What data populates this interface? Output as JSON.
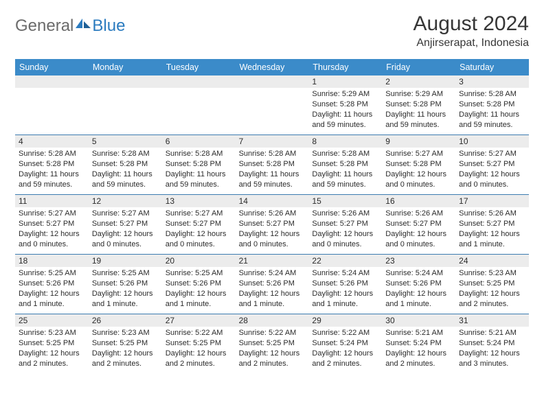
{
  "colors": {
    "header_bg": "#3b8bc9",
    "header_text": "#ffffff",
    "daynum_bg": "#ececec",
    "week_border": "#3b7bb0",
    "body_text": "#2b2b2b",
    "logo_gray": "#6b6b6b",
    "logo_blue": "#2b7bbf"
  },
  "logo": {
    "text1": "General",
    "text2": "Blue"
  },
  "title": "August 2024",
  "location": "Anjirserapat, Indonesia",
  "day_names": [
    "Sunday",
    "Monday",
    "Tuesday",
    "Wednesday",
    "Thursday",
    "Friday",
    "Saturday"
  ],
  "weeks": [
    [
      {
        "n": "",
        "sr": "",
        "ss": "",
        "dl": ""
      },
      {
        "n": "",
        "sr": "",
        "ss": "",
        "dl": ""
      },
      {
        "n": "",
        "sr": "",
        "ss": "",
        "dl": ""
      },
      {
        "n": "",
        "sr": "",
        "ss": "",
        "dl": ""
      },
      {
        "n": "1",
        "sr": "Sunrise: 5:29 AM",
        "ss": "Sunset: 5:28 PM",
        "dl": "Daylight: 11 hours and 59 minutes."
      },
      {
        "n": "2",
        "sr": "Sunrise: 5:29 AM",
        "ss": "Sunset: 5:28 PM",
        "dl": "Daylight: 11 hours and 59 minutes."
      },
      {
        "n": "3",
        "sr": "Sunrise: 5:28 AM",
        "ss": "Sunset: 5:28 PM",
        "dl": "Daylight: 11 hours and 59 minutes."
      }
    ],
    [
      {
        "n": "4",
        "sr": "Sunrise: 5:28 AM",
        "ss": "Sunset: 5:28 PM",
        "dl": "Daylight: 11 hours and 59 minutes."
      },
      {
        "n": "5",
        "sr": "Sunrise: 5:28 AM",
        "ss": "Sunset: 5:28 PM",
        "dl": "Daylight: 11 hours and 59 minutes."
      },
      {
        "n": "6",
        "sr": "Sunrise: 5:28 AM",
        "ss": "Sunset: 5:28 PM",
        "dl": "Daylight: 11 hours and 59 minutes."
      },
      {
        "n": "7",
        "sr": "Sunrise: 5:28 AM",
        "ss": "Sunset: 5:28 PM",
        "dl": "Daylight: 11 hours and 59 minutes."
      },
      {
        "n": "8",
        "sr": "Sunrise: 5:28 AM",
        "ss": "Sunset: 5:28 PM",
        "dl": "Daylight: 11 hours and 59 minutes."
      },
      {
        "n": "9",
        "sr": "Sunrise: 5:27 AM",
        "ss": "Sunset: 5:28 PM",
        "dl": "Daylight: 12 hours and 0 minutes."
      },
      {
        "n": "10",
        "sr": "Sunrise: 5:27 AM",
        "ss": "Sunset: 5:27 PM",
        "dl": "Daylight: 12 hours and 0 minutes."
      }
    ],
    [
      {
        "n": "11",
        "sr": "Sunrise: 5:27 AM",
        "ss": "Sunset: 5:27 PM",
        "dl": "Daylight: 12 hours and 0 minutes."
      },
      {
        "n": "12",
        "sr": "Sunrise: 5:27 AM",
        "ss": "Sunset: 5:27 PM",
        "dl": "Daylight: 12 hours and 0 minutes."
      },
      {
        "n": "13",
        "sr": "Sunrise: 5:27 AM",
        "ss": "Sunset: 5:27 PM",
        "dl": "Daylight: 12 hours and 0 minutes."
      },
      {
        "n": "14",
        "sr": "Sunrise: 5:26 AM",
        "ss": "Sunset: 5:27 PM",
        "dl": "Daylight: 12 hours and 0 minutes."
      },
      {
        "n": "15",
        "sr": "Sunrise: 5:26 AM",
        "ss": "Sunset: 5:27 PM",
        "dl": "Daylight: 12 hours and 0 minutes."
      },
      {
        "n": "16",
        "sr": "Sunrise: 5:26 AM",
        "ss": "Sunset: 5:27 PM",
        "dl": "Daylight: 12 hours and 0 minutes."
      },
      {
        "n": "17",
        "sr": "Sunrise: 5:26 AM",
        "ss": "Sunset: 5:27 PM",
        "dl": "Daylight: 12 hours and 1 minute."
      }
    ],
    [
      {
        "n": "18",
        "sr": "Sunrise: 5:25 AM",
        "ss": "Sunset: 5:26 PM",
        "dl": "Daylight: 12 hours and 1 minute."
      },
      {
        "n": "19",
        "sr": "Sunrise: 5:25 AM",
        "ss": "Sunset: 5:26 PM",
        "dl": "Daylight: 12 hours and 1 minute."
      },
      {
        "n": "20",
        "sr": "Sunrise: 5:25 AM",
        "ss": "Sunset: 5:26 PM",
        "dl": "Daylight: 12 hours and 1 minute."
      },
      {
        "n": "21",
        "sr": "Sunrise: 5:24 AM",
        "ss": "Sunset: 5:26 PM",
        "dl": "Daylight: 12 hours and 1 minute."
      },
      {
        "n": "22",
        "sr": "Sunrise: 5:24 AM",
        "ss": "Sunset: 5:26 PM",
        "dl": "Daylight: 12 hours and 1 minute."
      },
      {
        "n": "23",
        "sr": "Sunrise: 5:24 AM",
        "ss": "Sunset: 5:26 PM",
        "dl": "Daylight: 12 hours and 1 minute."
      },
      {
        "n": "24",
        "sr": "Sunrise: 5:23 AM",
        "ss": "Sunset: 5:25 PM",
        "dl": "Daylight: 12 hours and 2 minutes."
      }
    ],
    [
      {
        "n": "25",
        "sr": "Sunrise: 5:23 AM",
        "ss": "Sunset: 5:25 PM",
        "dl": "Daylight: 12 hours and 2 minutes."
      },
      {
        "n": "26",
        "sr": "Sunrise: 5:23 AM",
        "ss": "Sunset: 5:25 PM",
        "dl": "Daylight: 12 hours and 2 minutes."
      },
      {
        "n": "27",
        "sr": "Sunrise: 5:22 AM",
        "ss": "Sunset: 5:25 PM",
        "dl": "Daylight: 12 hours and 2 minutes."
      },
      {
        "n": "28",
        "sr": "Sunrise: 5:22 AM",
        "ss": "Sunset: 5:25 PM",
        "dl": "Daylight: 12 hours and 2 minutes."
      },
      {
        "n": "29",
        "sr": "Sunrise: 5:22 AM",
        "ss": "Sunset: 5:24 PM",
        "dl": "Daylight: 12 hours and 2 minutes."
      },
      {
        "n": "30",
        "sr": "Sunrise: 5:21 AM",
        "ss": "Sunset: 5:24 PM",
        "dl": "Daylight: 12 hours and 2 minutes."
      },
      {
        "n": "31",
        "sr": "Sunrise: 5:21 AM",
        "ss": "Sunset: 5:24 PM",
        "dl": "Daylight: 12 hours and 3 minutes."
      }
    ]
  ]
}
